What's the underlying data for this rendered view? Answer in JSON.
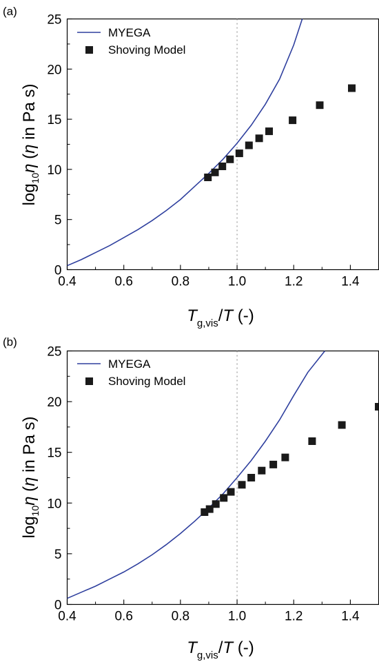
{
  "chart_data": [
    {
      "panel_label": "(a)",
      "type": "line",
      "xlim": [
        0.4,
        1.5
      ],
      "ylim": [
        0,
        25
      ],
      "x_ticks": [
        "0.4",
        "0.6",
        "0.8",
        "1.0",
        "1.2",
        "1.4"
      ],
      "x_tick_values": [
        0.4,
        0.6,
        0.8,
        1.0,
        1.2,
        1.4
      ],
      "y_ticks": [
        "0",
        "5",
        "10",
        "15",
        "20",
        "25"
      ],
      "y_tick_values": [
        0,
        5,
        10,
        15,
        20,
        25
      ],
      "ylabel": {
        "prefix": "log",
        "sub": "10",
        "eta": "η",
        "rest": " (",
        "eta2": "η",
        "end": " in Pa s)"
      },
      "xlabel": {
        "T": "T",
        "sub": "g,vis",
        "slash": "/",
        "T2": "T",
        "end": " (-)"
      },
      "reference_line_x": 1.0,
      "grid": false,
      "legend_position": "top-left",
      "series": [
        {
          "name": "MYEGA",
          "kind": "line",
          "color": "#2e3f9e",
          "x": [
            0.4,
            0.45,
            0.5,
            0.55,
            0.6,
            0.65,
            0.7,
            0.75,
            0.8,
            0.85,
            0.9,
            0.95,
            1.0,
            1.05,
            1.1,
            1.15,
            1.2,
            1.23
          ],
          "y": [
            0.4,
            1.0,
            1.7,
            2.4,
            3.2,
            4.0,
            4.9,
            5.9,
            7.0,
            8.3,
            9.6,
            11.0,
            12.6,
            14.4,
            16.5,
            19.0,
            22.4,
            25.0
          ]
        },
        {
          "name": "Shoving Model",
          "kind": "scatter",
          "color": "#1a1a1a",
          "x": [
            0.897,
            0.922,
            0.948,
            0.975,
            1.008,
            1.042,
            1.078,
            1.113,
            1.196,
            1.292,
            1.405
          ],
          "y": [
            9.2,
            9.7,
            10.3,
            11.0,
            11.6,
            12.4,
            13.1,
            13.8,
            14.9,
            16.4,
            18.1
          ]
        }
      ]
    },
    {
      "panel_label": "(b)",
      "type": "line",
      "xlim": [
        0.4,
        1.5
      ],
      "ylim": [
        0,
        25
      ],
      "x_ticks": [
        "0.4",
        "0.6",
        "0.8",
        "1.0",
        "1.2",
        "1.4"
      ],
      "x_tick_values": [
        0.4,
        0.6,
        0.8,
        1.0,
        1.2,
        1.4
      ],
      "y_ticks": [
        "0",
        "5",
        "10",
        "15",
        "20",
        "25"
      ],
      "y_tick_values": [
        0,
        5,
        10,
        15,
        20,
        25
      ],
      "ylabel": {
        "prefix": "log",
        "sub": "10",
        "eta": "η",
        "rest": " (",
        "eta2": "η",
        "end": " in Pa s)"
      },
      "xlabel": {
        "T": "T",
        "sub": "g,vis",
        "slash": "/",
        "T2": "T",
        "end": " (-)"
      },
      "reference_line_x": 1.0,
      "grid": false,
      "legend_position": "top-left",
      "series": [
        {
          "name": "MYEGA",
          "kind": "line",
          "color": "#2e3f9e",
          "x": [
            0.4,
            0.45,
            0.5,
            0.55,
            0.6,
            0.65,
            0.7,
            0.75,
            0.8,
            0.85,
            0.9,
            0.95,
            1.0,
            1.05,
            1.1,
            1.15,
            1.2,
            1.25,
            1.31
          ],
          "y": [
            0.6,
            1.2,
            1.8,
            2.5,
            3.2,
            4.0,
            4.9,
            5.9,
            7.0,
            8.2,
            9.5,
            10.9,
            12.5,
            14.2,
            16.1,
            18.2,
            20.6,
            22.9,
            25.0
          ]
        },
        {
          "name": "Shoving Model",
          "kind": "scatter",
          "color": "#1a1a1a",
          "x": [
            0.885,
            0.903,
            0.925,
            0.953,
            0.978,
            1.017,
            1.05,
            1.087,
            1.128,
            1.17,
            1.265,
            1.37,
            1.5
          ],
          "y": [
            9.1,
            9.4,
            9.9,
            10.5,
            11.1,
            11.8,
            12.5,
            13.2,
            13.8,
            14.5,
            16.1,
            17.7,
            19.5
          ]
        }
      ]
    }
  ]
}
